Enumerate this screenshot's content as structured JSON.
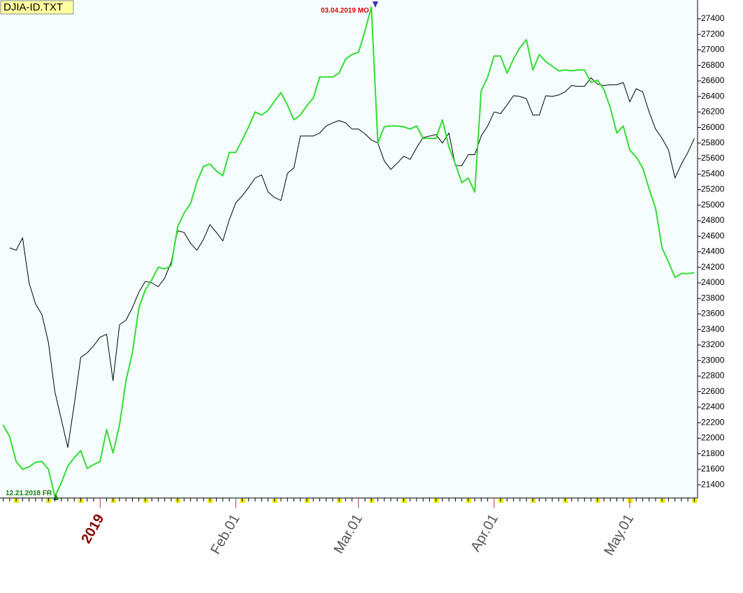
{
  "chart_data": {
    "type": "line",
    "title": "DJIA-ID.TXT",
    "annotations": [
      "03.04.2019 MO",
      "12.21.2018 FR"
    ],
    "categories": [
      null,
      null,
      null,
      null,
      null,
      null,
      null,
      null,
      null,
      null,
      null,
      null,
      null,
      null,
      null,
      "2019",
      null,
      null,
      null,
      null,
      null,
      null,
      null,
      null,
      null,
      null,
      null,
      null,
      null,
      null,
      null,
      null,
      null,
      null,
      null,
      null,
      "Feb.01",
      null,
      null,
      null,
      null,
      null,
      null,
      null,
      null,
      null,
      null,
      null,
      null,
      null,
      null,
      null,
      null,
      null,
      null,
      "Mar.01",
      null,
      null,
      null,
      null,
      null,
      null,
      null,
      null,
      null,
      null,
      null,
      null,
      null,
      null,
      null,
      null,
      null,
      null,
      null,
      null,
      "Apr.01",
      null,
      null,
      null,
      null,
      null,
      null,
      null,
      null,
      null,
      null,
      null,
      null,
      null,
      null,
      null,
      null,
      null,
      null,
      null,
      null,
      "May.01",
      null,
      null,
      null,
      null,
      null,
      null,
      null,
      null,
      null,
      null
    ],
    "series": [
      {
        "color": "#000000",
        "values": [
          null,
          24450,
          24420,
          24580,
          24000,
          23730,
          23590,
          23230,
          22600,
          22240,
          21880,
          22440,
          23040,
          23100,
          23190,
          23300,
          23340,
          22740,
          23460,
          23520,
          23680,
          23880,
          24020,
          24000,
          23950,
          24060,
          24270,
          24670,
          24650,
          24510,
          24420,
          24560,
          24750,
          24650,
          24540,
          24810,
          25030,
          25120,
          25230,
          25350,
          25390,
          25170,
          25100,
          25060,
          25410,
          25480,
          25890,
          25890,
          25890,
          25930,
          26020,
          26060,
          26090,
          26060,
          25980,
          25980,
          25920,
          25840,
          25800,
          25570,
          25460,
          25540,
          25630,
          25590,
          25740,
          25870,
          25890,
          25910,
          25800,
          25930,
          25510,
          25510,
          25650,
          25650,
          25890,
          26020,
          26200,
          26180,
          26290,
          26410,
          26400,
          26370,
          26160,
          26160,
          26410,
          26400,
          26420,
          26460,
          26540,
          26530,
          26530,
          26640,
          26560,
          26540,
          26550,
          26550,
          26580,
          26330,
          26500,
          26460,
          26200,
          25980,
          25860,
          25710,
          25350,
          25530,
          25680,
          25860
        ]
      },
      {
        "color": "#33dd33",
        "values": [
          22170,
          22020,
          21700,
          21600,
          21630,
          21690,
          21700,
          21600,
          21250,
          21430,
          21640,
          21750,
          21840,
          21610,
          21660,
          21700,
          22110,
          21810,
          22170,
          22740,
          23100,
          23680,
          23910,
          24040,
          24200,
          24180,
          24220,
          24720,
          24900,
          25020,
          25300,
          25500,
          25530,
          25440,
          25380,
          25680,
          25680,
          25840,
          26010,
          26200,
          26160,
          26220,
          26340,
          26450,
          26290,
          26100,
          26160,
          26280,
          26380,
          26650,
          26650,
          26650,
          26700,
          26880,
          26940,
          26970,
          27240,
          27550,
          25800,
          26010,
          26020,
          26020,
          26010,
          25980,
          26020,
          25860,
          25860,
          25860,
          26100,
          25750,
          25530,
          25290,
          25350,
          25170,
          26470,
          26650,
          26920,
          26920,
          26700,
          26880,
          27030,
          27130,
          26740,
          26940,
          26850,
          26790,
          26730,
          26740,
          26730,
          26740,
          26740,
          26580,
          26610,
          26490,
          26250,
          25930,
          26020,
          25710,
          25620,
          25480,
          25210,
          24960,
          24450,
          24270,
          24070,
          24120,
          24120,
          24130
        ]
      }
    ],
    "ylim": [
      21230,
      27570
    ],
    "yticks": [
      21400,
      21600,
      21800,
      22000,
      22200,
      22400,
      22600,
      22800,
      23000,
      23200,
      23400,
      23600,
      23800,
      24000,
      24200,
      24400,
      24600,
      24800,
      25000,
      25200,
      25400,
      25600,
      25800,
      26000,
      26200,
      26400,
      26600,
      26800,
      27000,
      27200,
      27400
    ]
  }
}
